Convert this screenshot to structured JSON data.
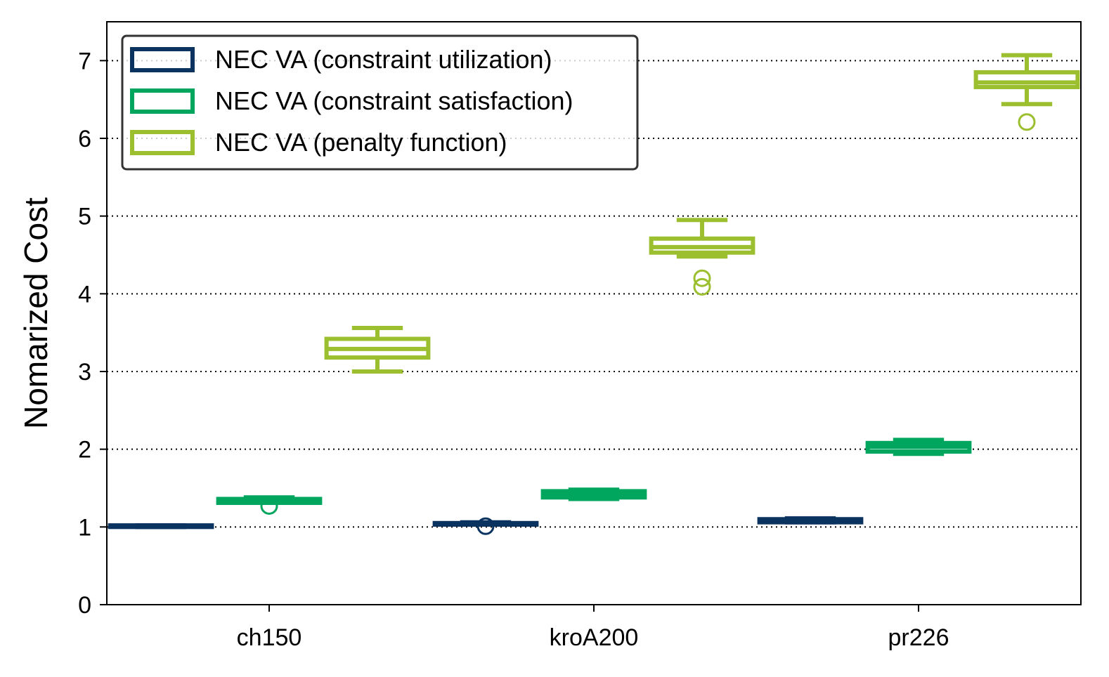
{
  "chart_data": {
    "type": "box",
    "ylabel": "Nomarized Cost",
    "xlabel": "",
    "ylim": [
      0,
      7.5
    ],
    "yticks": [
      0,
      1,
      2,
      3,
      4,
      5,
      6,
      7
    ],
    "grid": "y-dotted",
    "legend_position": "top-left",
    "categories": [
      "ch150",
      "kroA200",
      "pr226"
    ],
    "series": [
      {
        "name": "NEC VA (constraint utilization)",
        "color": "#0b3360",
        "boxes": [
          {
            "whisker_low": 1.0,
            "q1": 1.0,
            "median": 1.01,
            "q3": 1.02,
            "whisker_high": 1.02,
            "outliers": []
          },
          {
            "whisker_low": 1.03,
            "q1": 1.03,
            "median": 1.04,
            "q3": 1.05,
            "whisker_high": 1.06,
            "outliers": [
              1.01
            ]
          },
          {
            "whisker_low": 1.06,
            "q1": 1.06,
            "median": 1.08,
            "q3": 1.1,
            "whisker_high": 1.11,
            "outliers": []
          }
        ]
      },
      {
        "name": "NEC VA (constraint satisfaction)",
        "color": "#00a65e",
        "boxes": [
          {
            "whisker_low": 1.31,
            "q1": 1.31,
            "median": 1.33,
            "q3": 1.36,
            "whisker_high": 1.38,
            "outliers": [
              1.27
            ]
          },
          {
            "whisker_low": 1.36,
            "q1": 1.38,
            "median": 1.42,
            "q3": 1.46,
            "whisker_high": 1.48,
            "outliers": []
          },
          {
            "whisker_low": 1.94,
            "q1": 1.97,
            "median": 2.03,
            "q3": 2.08,
            "whisker_high": 2.12,
            "outliers": []
          }
        ]
      },
      {
        "name": "NEC VA (penalty function)",
        "color": "#9bbf2e",
        "boxes": [
          {
            "whisker_low": 3.0,
            "q1": 3.18,
            "median": 3.29,
            "q3": 3.42,
            "whisker_high": 3.56,
            "outliers": []
          },
          {
            "whisker_low": 4.48,
            "q1": 4.53,
            "median": 4.6,
            "q3": 4.71,
            "whisker_high": 4.95,
            "outliers": [
              4.2,
              4.09
            ]
          },
          {
            "whisker_low": 6.44,
            "q1": 6.66,
            "median": 6.72,
            "q3": 6.85,
            "whisker_high": 7.07,
            "outliers": [
              6.21
            ]
          }
        ]
      }
    ]
  }
}
